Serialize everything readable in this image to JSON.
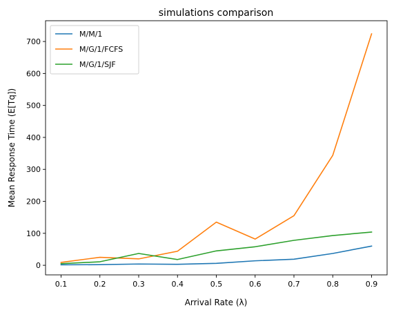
{
  "chart_data": {
    "type": "line",
    "title": "simulations comparison",
    "xlabel": "Arrival Rate (λ)",
    "ylabel": "Mean Response Time (E[Tq])",
    "x": [
      0.1,
      0.2,
      0.3,
      0.4,
      0.5,
      0.6,
      0.7,
      0.8,
      0.9
    ],
    "xticks": [
      "0.1",
      "0.2",
      "0.3",
      "0.4",
      "0.5",
      "0.6",
      "0.7",
      "0.8",
      "0.9"
    ],
    "yticks": [
      0,
      100,
      200,
      300,
      400,
      500,
      600,
      700
    ],
    "xlim": [
      0.06,
      0.94
    ],
    "ylim": [
      -30,
      765
    ],
    "grid": false,
    "legend": "top-left",
    "series": [
      {
        "name": "M/M/1",
        "color": "#1f77b4",
        "values": [
          1.5,
          2,
          4,
          3,
          6,
          14,
          19,
          37,
          60
        ]
      },
      {
        "name": "M/G/1/FCFS",
        "color": "#ff7f0e",
        "values": [
          9,
          25,
          20,
          44,
          135,
          82,
          155,
          344,
          724
        ]
      },
      {
        "name": "M/G/1/SJF",
        "color": "#2ca02c",
        "values": [
          5,
          11,
          37,
          18,
          45,
          58,
          78,
          93,
          104
        ]
      }
    ]
  }
}
